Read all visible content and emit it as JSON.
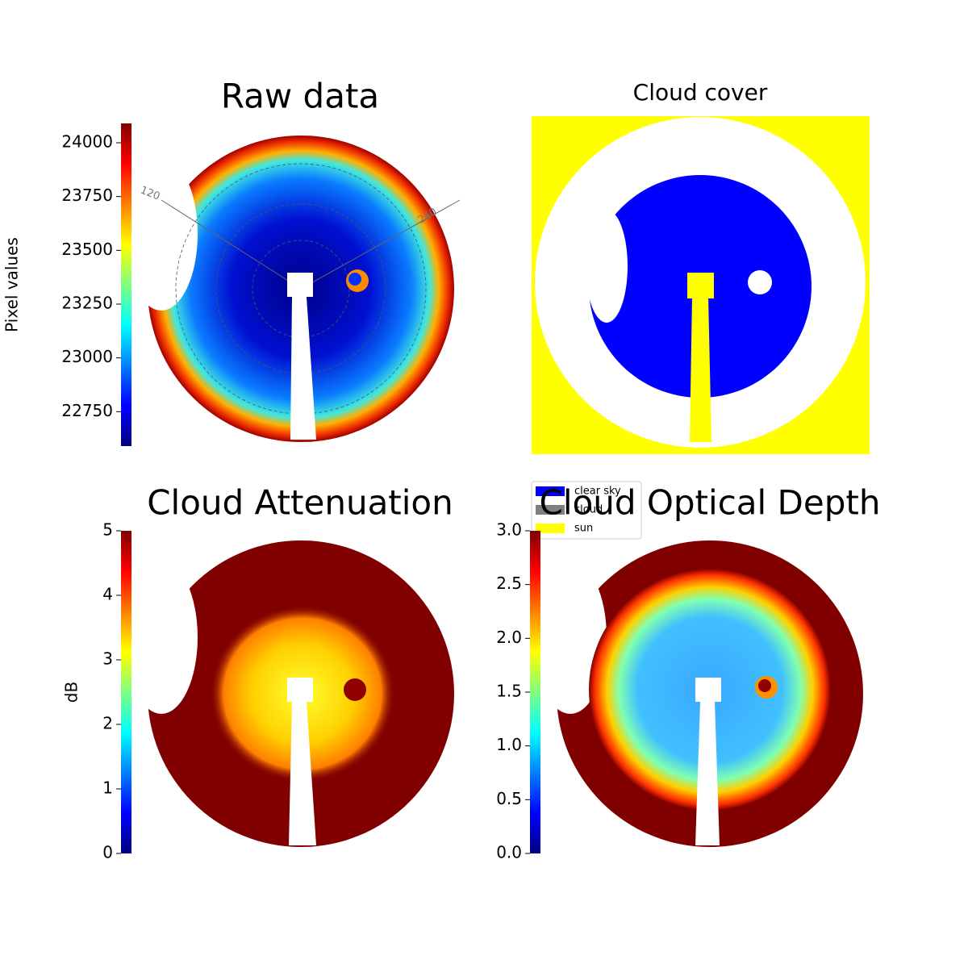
{
  "chart_data": [
    {
      "type": "image",
      "title": "Raw data",
      "colorbar_label": "Pixel values",
      "colormap": "jet",
      "clim": [
        22590,
        24090
      ],
      "cticks": [
        22750,
        23000,
        23250,
        23500,
        23750,
        24000
      ],
      "annotations": [
        "120",
        "240"
      ]
    },
    {
      "type": "image",
      "title": "Cloud cover",
      "series": [
        {
          "name": "clear sky",
          "color": "#0000ff"
        },
        {
          "name": "cloud",
          "color": "#808080"
        },
        {
          "name": "sun",
          "color": "#ffff00"
        }
      ]
    },
    {
      "type": "image",
      "title": "Cloud Attenuation",
      "colorbar_label": "dB",
      "colormap": "jet",
      "clim": [
        0,
        5
      ],
      "cticks": [
        0,
        1,
        2,
        3,
        4,
        5
      ]
    },
    {
      "type": "image",
      "title": "Cloud Optical Depth",
      "colormap": "jet",
      "clim": [
        0,
        3
      ],
      "cticks": [
        {
          "value": 0,
          "label": "0.0"
        },
        {
          "value": 0.5,
          "label": "0.5"
        },
        {
          "value": 1,
          "label": "1.0"
        },
        {
          "value": 1.5,
          "label": "1.5"
        },
        {
          "value": 2,
          "label": "2.0"
        },
        {
          "value": 2.5,
          "label": "2.5"
        },
        {
          "value": 3,
          "label": "3.0"
        }
      ]
    }
  ]
}
